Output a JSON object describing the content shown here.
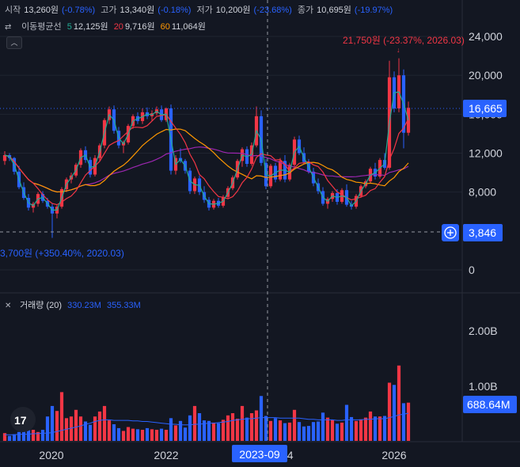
{
  "legend": {
    "open_label": "시작",
    "open_value": "13,260원",
    "open_change": "(-0.78%)",
    "high_label": "고가",
    "high_value": "13,340원",
    "high_change": "(-0.18%)",
    "low_label": "저가",
    "low_value": "10,200원",
    "low_change": "(-23.68%)",
    "close_label": "종가",
    "close_value": "10,695원",
    "close_change": "(-19.97%)",
    "ma_label": "이동평균선",
    "ma5_period": "5",
    "ma5_value": "12,125원",
    "ma20_period": "20",
    "ma20_value": "9,716원",
    "ma60_period": "60",
    "ma60_value": "11,064원",
    "volume_label": "거래량 (20)",
    "volume_value1": "330.23M",
    "volume_value2": "355.33M"
  },
  "annotations": {
    "high": "21,750원 (-23.37%, 2026.03)",
    "low": "3,700원 (+350.40%, 2020.03)"
  },
  "price_badges": {
    "current": "16,665",
    "crosshair": "3,846",
    "volume_current": "688.64M"
  },
  "crosshair_date": "2023-09",
  "colors": {
    "up": "#f23645",
    "down": "#2962ff",
    "background": "#131722",
    "ma5": "#22ab94",
    "ma20": "#f23645",
    "ma60": "#ff9800",
    "ma120": "#9c27b0"
  },
  "chart_data": {
    "type": "candlestick",
    "price_axis": {
      "ticks": [
        "24,000",
        "20,000",
        "16,000",
        "12,000",
        "8,000",
        "0"
      ],
      "ylim": [
        0,
        24000
      ]
    },
    "volume_axis": {
      "ticks": [
        "2.00B",
        "1.00B"
      ]
    },
    "x_ticks": [
      "2020",
      "2022",
      "2024",
      "2026"
    ],
    "candles": [
      [
        11200,
        12200,
        10800,
        11800
      ],
      [
        11800,
        12000,
        11200,
        11500
      ],
      [
        11500,
        11600,
        9800,
        10100
      ],
      [
        10100,
        10700,
        8300,
        8500
      ],
      [
        8500,
        9000,
        7200,
        7400
      ],
      [
        7400,
        7800,
        6100,
        6400
      ],
      [
        6400,
        7000,
        5900,
        6800
      ],
      [
        6800,
        8000,
        6500,
        7800
      ],
      [
        7800,
        8100,
        6900,
        7100
      ],
      [
        7100,
        7400,
        6300,
        6500
      ],
      [
        6500,
        6800,
        3700,
        5800
      ],
      [
        5800,
        6700,
        5300,
        6500
      ],
      [
        6500,
        8500,
        6300,
        8300
      ],
      [
        8300,
        9500,
        8000,
        9300
      ],
      [
        9300,
        10000,
        8900,
        9700
      ],
      [
        9700,
        11000,
        9500,
        10800
      ],
      [
        10800,
        12500,
        10500,
        12300
      ],
      [
        12300,
        12700,
        11000,
        11300
      ],
      [
        11300,
        11600,
        9500,
        9800
      ],
      [
        9800,
        11800,
        9600,
        11500
      ],
      [
        11500,
        13000,
        11200,
        12800
      ],
      [
        12800,
        15600,
        12500,
        15400
      ],
      [
        15400,
        16800,
        15000,
        16500
      ],
      [
        16500,
        16900,
        14000,
        14300
      ],
      [
        14300,
        14700,
        12500,
        12800
      ],
      [
        12800,
        13300,
        12000,
        13100
      ],
      [
        13100,
        15000,
        12900,
        14800
      ],
      [
        14800,
        16000,
        14500,
        15800
      ],
      [
        15800,
        16200,
        15000,
        15300
      ],
      [
        15300,
        16600,
        15000,
        16200
      ],
      [
        16200,
        16700,
        15500,
        15800
      ],
      [
        15800,
        16400,
        15300,
        16100
      ],
      [
        16100,
        16800,
        15900,
        16500
      ],
      [
        16500,
        16900,
        15200,
        15400
      ],
      [
        15400,
        16700,
        15200,
        16600
      ],
      [
        16600,
        17000,
        9800,
        10200
      ],
      [
        10200,
        11800,
        9800,
        11500
      ],
      [
        11500,
        12500,
        11000,
        11200
      ],
      [
        11200,
        11400,
        9900,
        10200
      ],
      [
        10200,
        10500,
        7800,
        8100
      ],
      [
        8100,
        9600,
        7800,
        9400
      ],
      [
        9400,
        9700,
        7700,
        8000
      ],
      [
        8000,
        8600,
        6900,
        7200
      ],
      [
        7200,
        7500,
        6100,
        6400
      ],
      [
        6400,
        7300,
        6200,
        7100
      ],
      [
        7100,
        7400,
        6400,
        6600
      ],
      [
        6600,
        7700,
        6400,
        7500
      ],
      [
        7500,
        8600,
        7300,
        8400
      ],
      [
        8400,
        9700,
        8200,
        9500
      ],
      [
        9500,
        11400,
        9300,
        11200
      ],
      [
        11200,
        12600,
        10600,
        12400
      ],
      [
        12400,
        12700,
        10600,
        10900
      ],
      [
        10900,
        13100,
        10700,
        12800
      ],
      [
        12800,
        16800,
        12600,
        15800
      ],
      [
        15800,
        16400,
        10700,
        11000
      ],
      [
        11000,
        11400,
        8300,
        8600
      ],
      [
        8600,
        10900,
        8400,
        10700
      ],
      [
        10700,
        11000,
        9000,
        9300
      ],
      [
        9300,
        11500,
        9100,
        11200
      ],
      [
        11200,
        11800,
        9000,
        9300
      ],
      [
        9300,
        11000,
        9100,
        10800
      ],
      [
        10800,
        13700,
        10600,
        13400
      ],
      [
        13400,
        13800,
        11800,
        12000
      ],
      [
        12000,
        12600,
        10900,
        11100
      ],
      [
        11100,
        11400,
        9900,
        10100
      ],
      [
        10100,
        10500,
        8600,
        8900
      ],
      [
        8900,
        9400,
        7800,
        8100
      ],
      [
        8100,
        8500,
        6600,
        6800
      ],
      [
        6800,
        7500,
        6300,
        7300
      ],
      [
        7300,
        8100,
        7000,
        7900
      ],
      [
        7900,
        8300,
        6700,
        7000
      ],
      [
        7000,
        8400,
        6800,
        8200
      ],
      [
        8200,
        8800,
        6500,
        6700
      ],
      [
        6700,
        7100,
        6200,
        6500
      ],
      [
        6500,
        7800,
        6300,
        7600
      ],
      [
        7600,
        8800,
        7400,
        8600
      ],
      [
        8600,
        9300,
        8400,
        9100
      ],
      [
        9100,
        10600,
        8900,
        10400
      ],
      [
        10400,
        11000,
        9300,
        9600
      ],
      [
        9600,
        11500,
        9400,
        11300
      ],
      [
        11300,
        12000,
        10300,
        10500
      ],
      [
        10500,
        21500,
        10300,
        19800
      ],
      [
        19800,
        20400,
        16200,
        16600
      ],
      [
        16600,
        21750,
        16200,
        20000
      ],
      [
        20000,
        20600,
        12500,
        14100
      ],
      [
        14100,
        17300,
        13800,
        16665
      ]
    ],
    "volume": [
      0.14,
      0.09,
      0.12,
      0.16,
      0.19,
      0.38,
      0.2,
      0.16,
      0.2,
      0.44,
      0.63,
      0.54,
      0.88,
      0.41,
      0.44,
      0.56,
      0.44,
      0.35,
      0.29,
      0.44,
      0.53,
      0.63,
      0.37,
      0.3,
      0.23,
      0.18,
      0.25,
      0.22,
      0.21,
      0.2,
      0.23,
      0.21,
      0.2,
      0.22,
      0.2,
      0.41,
      0.28,
      0.36,
      0.24,
      0.46,
      0.63,
      0.5,
      0.37,
      0.36,
      0.33,
      0.32,
      0.38,
      0.46,
      0.5,
      0.4,
      0.63,
      0.42,
      0.5,
      0.55,
      0.81,
      0.45,
      0.36,
      0.41,
      0.37,
      0.32,
      0.33,
      0.56,
      0.34,
      0.26,
      0.27,
      0.34,
      0.35,
      0.51,
      0.42,
      0.38,
      0.31,
      0.33,
      0.65,
      0.43,
      0.36,
      0.39,
      0.42,
      0.53,
      0.44,
      0.44,
      0.45,
      1.05,
      1.01,
      1.36,
      0.68,
      0.69
    ],
    "volume_ma": [
      0.11,
      0.11,
      0.11,
      0.12,
      0.12,
      0.12,
      0.13,
      0.13,
      0.14,
      0.14,
      0.15,
      0.17,
      0.19,
      0.21,
      0.23,
      0.25,
      0.27,
      0.3,
      0.32,
      0.35,
      0.37,
      0.38,
      0.38,
      0.37,
      0.37,
      0.37,
      0.37,
      0.36,
      0.36,
      0.35,
      0.35,
      0.34,
      0.33,
      0.32,
      0.31,
      0.3,
      0.3,
      0.29,
      0.29,
      0.29,
      0.3,
      0.3,
      0.31,
      0.32,
      0.32,
      0.33,
      0.34,
      0.35,
      0.37,
      0.38,
      0.39,
      0.4,
      0.4,
      0.41,
      0.42,
      0.42,
      0.42,
      0.42,
      0.41,
      0.41,
      0.41,
      0.41,
      0.41,
      0.4,
      0.39,
      0.39,
      0.38,
      0.38,
      0.38,
      0.38,
      0.37,
      0.37,
      0.38,
      0.38,
      0.38,
      0.38,
      0.39,
      0.39,
      0.4,
      0.4,
      0.4,
      0.42,
      0.44,
      0.47,
      0.48,
      0.5
    ]
  }
}
